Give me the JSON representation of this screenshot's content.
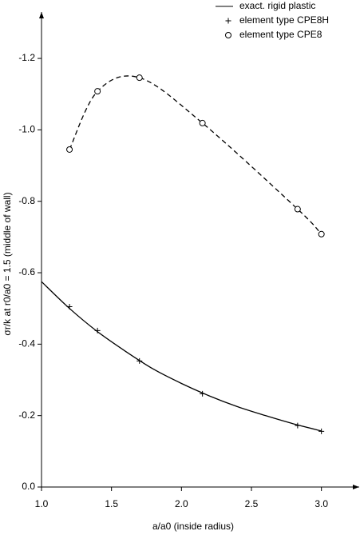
{
  "chart_data": {
    "type": "line",
    "xlabel": "a/a0 (inside radius)",
    "ylabel": "σr/k  at  r0/a0 = 1.5 (middle of wall)",
    "xlim": [
      1.0,
      3.27
    ],
    "ylim": [
      0,
      -1.33
    ],
    "xticks": [
      {
        "value": 1.0,
        "label": "1.0"
      },
      1.5,
      {
        "value": 2.0,
        "label": "2.0"
      },
      2.5,
      {
        "value": 3.0,
        "label": "3.0"
      }
    ],
    "yticks": [
      {
        "value": 0,
        "label": "0.0"
      },
      -0.2,
      -0.4,
      -0.6,
      -0.8,
      {
        "value": -1.0,
        "label": "-1.0"
      },
      -1.2
    ],
    "series": [
      {
        "name": "exact. rigid plastic",
        "color": "#000000",
        "line": "solid",
        "marker": null,
        "x": [
          1.0,
          1.2,
          1.4,
          1.6,
          1.8,
          2.0,
          2.2,
          2.4,
          2.6,
          2.8,
          3.0
        ],
        "values": [
          -0.575,
          -0.5,
          -0.435,
          -0.38,
          -0.33,
          -0.29,
          -0.255,
          -0.225,
          -0.2,
          -0.177,
          -0.157
        ]
      },
      {
        "name": "element type CPE8H",
        "color": "#000000",
        "line": null,
        "marker": "plus",
        "x": [
          1.2,
          1.4,
          1.7,
          2.15,
          2.83,
          3.0
        ],
        "values": [
          -0.505,
          -0.438,
          -0.353,
          -0.261,
          -0.172,
          -0.156
        ]
      },
      {
        "name": "element type CPE8",
        "color": "#000000",
        "line": "dashed",
        "marker": "circle",
        "x": [
          1.2,
          1.4,
          1.7,
          2.15,
          2.83,
          3.0
        ],
        "values": [
          -0.945,
          -1.108,
          -1.146,
          -1.019,
          -0.778,
          -0.708
        ]
      }
    ]
  }
}
